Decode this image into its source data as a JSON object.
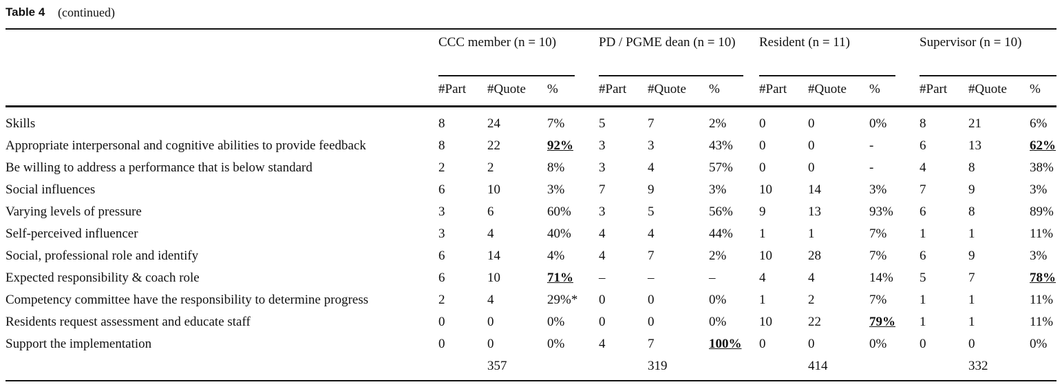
{
  "caption": {
    "label": "Table 4",
    "text": "(continued)"
  },
  "table": {
    "groups": [
      "CCC member (n = 10)",
      "PD / PGME dean (n = 10)",
      "Resident (n = 11)",
      "Supervisor (n = 10)"
    ],
    "subheaders": [
      "#Part",
      "#Quote",
      "%"
    ],
    "rows": [
      {
        "label": "Skills",
        "cells": [
          "8",
          "24",
          "7%",
          "5",
          "7",
          "2%",
          "0",
          "0",
          "0%",
          "8",
          "21",
          "6%"
        ]
      },
      {
        "label": "Appropriate interpersonal and cognitive abilities to provide feedback",
        "cells": [
          "8",
          "22",
          "92%",
          "3",
          "3",
          "43%",
          "0",
          "0",
          "-",
          "6",
          "13",
          "62%"
        ]
      },
      {
        "label": "Be willing to address a performance that is below standard",
        "cells": [
          "2",
          "2",
          "8%",
          "3",
          "4",
          "57%",
          "0",
          "0",
          "-",
          "4",
          "8",
          "38%"
        ]
      },
      {
        "label": "Social influences",
        "cells": [
          "6",
          "10",
          "3%",
          "7",
          "9",
          "3%",
          "10",
          "14",
          "3%",
          "7",
          "9",
          "3%"
        ]
      },
      {
        "label": "Varying levels of pressure",
        "cells": [
          "3",
          "6",
          "60%",
          "3",
          "5",
          "56%",
          "9",
          "13",
          "93%",
          "6",
          "8",
          "89%"
        ]
      },
      {
        "label": "Self-perceived influencer",
        "cells": [
          "3",
          "4",
          "40%",
          "4",
          "4",
          "44%",
          "1",
          "1",
          "7%",
          "1",
          "1",
          "11%"
        ]
      },
      {
        "label": "Social, professional role and identify",
        "cells": [
          "6",
          "14",
          "4%",
          "4",
          "7",
          "2%",
          "10",
          "28",
          "7%",
          "6",
          "9",
          "3%"
        ]
      },
      {
        "label": "Expected responsibility & coach role",
        "cells": [
          "6",
          "10",
          "71%",
          "–",
          "–",
          "–",
          "4",
          "4",
          "14%",
          "5",
          "7",
          "78%"
        ]
      },
      {
        "label": "Competency committee have the responsibility to determine progress",
        "cells": [
          "2",
          "4",
          "29%*",
          "0",
          "0",
          "0%",
          "1",
          "2",
          "7%",
          "1",
          "1",
          "11%"
        ]
      },
      {
        "label": "Residents request assessment and educate staff",
        "cells": [
          "0",
          "0",
          "0%",
          "0",
          "0",
          "0%",
          "10",
          "22",
          "79%",
          "1",
          "1",
          "11%"
        ]
      },
      {
        "label": "Support the implementation",
        "cells": [
          "0",
          "0",
          "0%",
          "4",
          "7",
          "100%",
          "0",
          "0",
          "0%",
          "0",
          "0",
          "0%"
        ]
      }
    ],
    "totals": [
      "357",
      "319",
      "414",
      "332"
    ]
  }
}
